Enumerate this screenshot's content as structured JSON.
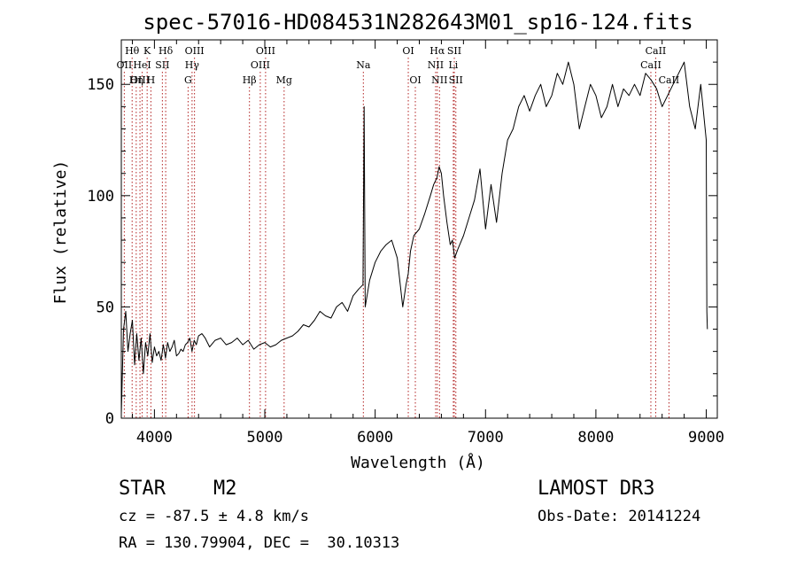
{
  "chart_data": {
    "type": "line",
    "title": "spec-57016-HD084531N282643M01_sp16-124.fits",
    "xlabel": "Wavelength (Å)",
    "ylabel": "Flux (relative)",
    "xlim": [
      3700,
      9100
    ],
    "ylim": [
      0,
      170
    ],
    "xticks": [
      4000,
      5000,
      6000,
      7000,
      8000,
      9000
    ],
    "yticks": [
      0,
      50,
      100,
      150
    ],
    "grid": false,
    "series": [
      {
        "name": "spectrum",
        "x": [
          3700,
          3720,
          3740,
          3760,
          3780,
          3800,
          3820,
          3840,
          3860,
          3880,
          3900,
          3920,
          3940,
          3960,
          3980,
          4000,
          4020,
          4040,
          4060,
          4080,
          4100,
          4120,
          4140,
          4160,
          4180,
          4200,
          4220,
          4240,
          4260,
          4280,
          4300,
          4320,
          4340,
          4360,
          4380,
          4400,
          4430,
          4460,
          4500,
          4550,
          4600,
          4650,
          4700,
          4750,
          4800,
          4850,
          4900,
          4950,
          5000,
          5050,
          5100,
          5150,
          5200,
          5250,
          5300,
          5350,
          5400,
          5450,
          5500,
          5550,
          5600,
          5650,
          5700,
          5750,
          5800,
          5850,
          5890,
          5900,
          5910,
          5950,
          6000,
          6050,
          6100,
          6150,
          6200,
          6250,
          6280,
          6300,
          6320,
          6350,
          6400,
          6450,
          6500,
          6530,
          6560,
          6580,
          6600,
          6620,
          6650,
          6680,
          6700,
          6720,
          6750,
          6800,
          6850,
          6900,
          6950,
          7000,
          7050,
          7100,
          7150,
          7200,
          7250,
          7300,
          7350,
          7400,
          7450,
          7500,
          7550,
          7600,
          7650,
          7700,
          7750,
          7800,
          7850,
          7900,
          7950,
          8000,
          8050,
          8100,
          8150,
          8200,
          8250,
          8300,
          8350,
          8400,
          8450,
          8500,
          8550,
          8600,
          8650,
          8700,
          8750,
          8800,
          8850,
          8900,
          8950,
          9000,
          9005,
          9010
        ],
        "values": [
          2,
          40,
          48,
          30,
          38,
          44,
          24,
          38,
          26,
          36,
          20,
          34,
          28,
          38,
          25,
          32,
          28,
          30,
          26,
          33,
          27,
          34,
          30,
          32,
          35,
          28,
          29,
          31,
          30,
          33,
          34,
          36,
          30,
          35,
          33,
          37,
          38,
          36,
          32,
          35,
          36,
          33,
          34,
          36,
          33,
          35,
          31,
          33,
          34,
          32,
          33,
          35,
          36,
          37,
          39,
          42,
          41,
          44,
          48,
          46,
          45,
          50,
          52,
          48,
          55,
          58,
          60,
          140,
          50,
          62,
          70,
          75,
          78,
          80,
          72,
          50,
          60,
          65,
          75,
          82,
          85,
          92,
          100,
          105,
          108,
          113,
          110,
          100,
          88,
          78,
          80,
          72,
          76,
          82,
          90,
          98,
          112,
          85,
          105,
          88,
          110,
          125,
          130,
          140,
          145,
          138,
          145,
          150,
          140,
          145,
          155,
          150,
          160,
          150,
          130,
          140,
          150,
          145,
          135,
          140,
          150,
          140,
          148,
          145,
          150,
          145,
          155,
          152,
          148,
          140,
          145,
          150,
          155,
          160,
          140,
          130,
          150,
          125,
          48,
          40
        ]
      }
    ],
    "lines": [
      {
        "label": "Hθ",
        "wave": 3798,
        "row": 1
      },
      {
        "label": "OII",
        "wave": 3727,
        "row": 2
      },
      {
        "label": "OIII",
        "wave": 3869,
        "row": 3
      },
      {
        "label": "K",
        "wave": 3934,
        "row": 1
      },
      {
        "label": "HeI",
        "wave": 3889,
        "row": 2
      },
      {
        "label": "Hη",
        "wave": 3835,
        "row": 3
      },
      {
        "label": "SII",
        "wave": 4072,
        "row": 2
      },
      {
        "label": "H",
        "wave": 3968,
        "row": 3
      },
      {
        "label": "Hδ",
        "wave": 4102,
        "row": 1
      },
      {
        "label": "OIII",
        "wave": 4363,
        "row": 1
      },
      {
        "label": "Hγ",
        "wave": 4341,
        "row": 2
      },
      {
        "label": "G",
        "wave": 4305,
        "row": 3
      },
      {
        "label": "Hβ",
        "wave": 4861,
        "row": 3
      },
      {
        "label": "OIII",
        "wave": 5007,
        "row": 1
      },
      {
        "label": "OIII",
        "wave": 4959,
        "row": 2
      },
      {
        "label": "Mg",
        "wave": 5175,
        "row": 3
      },
      {
        "label": "Na",
        "wave": 5893,
        "row": 2
      },
      {
        "label": "OI",
        "wave": 6300,
        "row": 1
      },
      {
        "label": "OI",
        "wave": 6364,
        "row": 3
      },
      {
        "label": "Hα",
        "wave": 6563,
        "row": 1
      },
      {
        "label": "NII",
        "wave": 6548,
        "row": 2
      },
      {
        "label": "NII",
        "wave": 6583,
        "row": 3
      },
      {
        "label": "SII",
        "wave": 6717,
        "row": 1
      },
      {
        "label": "Li",
        "wave": 6708,
        "row": 2
      },
      {
        "label": "SII",
        "wave": 6731,
        "row": 3
      },
      {
        "label": "CaII",
        "wave": 8542,
        "row": 1
      },
      {
        "label": "CaII",
        "wave": 8498,
        "row": 2
      },
      {
        "label": "CaII",
        "wave": 8662,
        "row": 3
      }
    ]
  },
  "info": {
    "class": "STAR",
    "subclass": "M2",
    "survey": "LAMOST DR3",
    "cz": "cz = -87.5 ± 4.8 km/s",
    "obs_date": "Obs-Date: 20141224",
    "radec": "RA = 130.79904, DEC =  30.10313"
  }
}
